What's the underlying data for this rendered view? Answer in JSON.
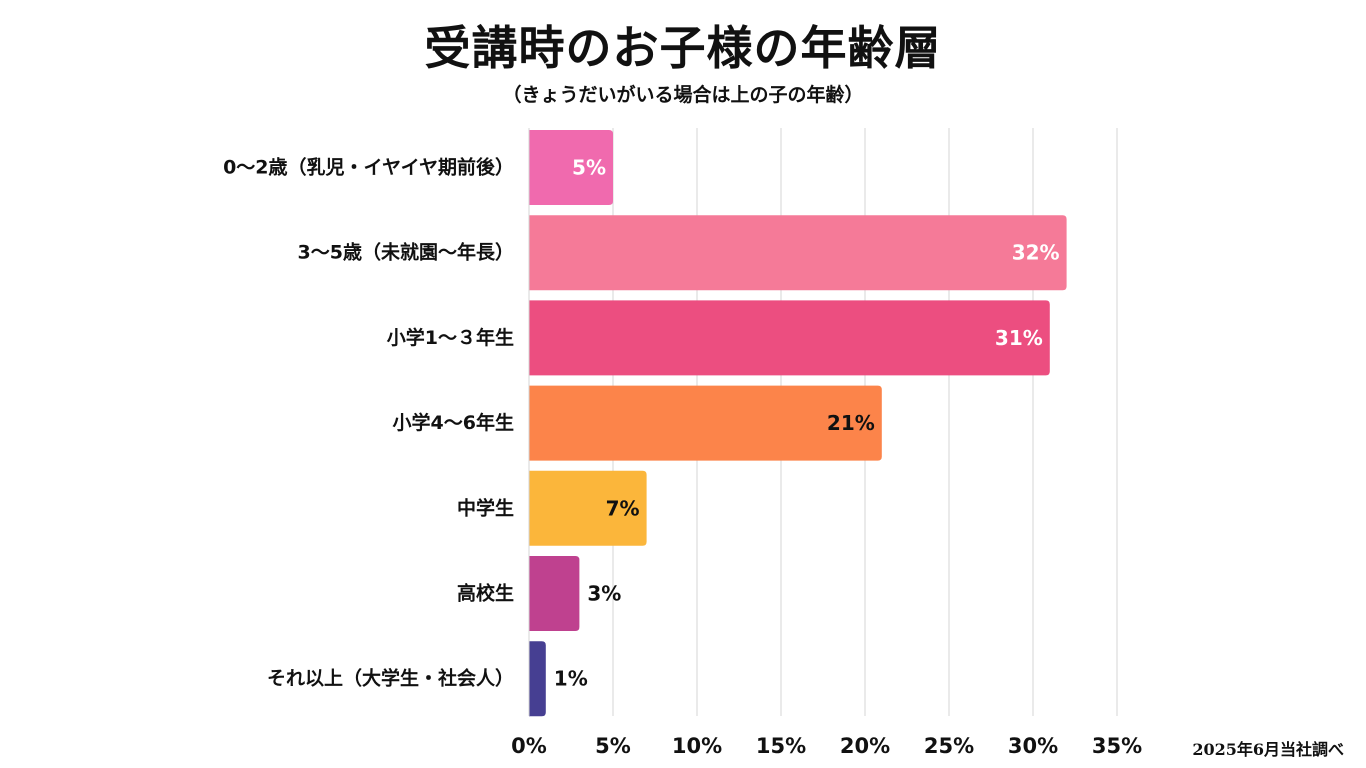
{
  "chart_data": {
    "type": "bar",
    "orientation": "horizontal",
    "title": "受講時のお子様の年齢層",
    "subtitle": "（きょうだいがいる場合は上の子の年齢）",
    "categories": [
      "0〜2歳（乳児・イヤイヤ期前後）",
      "3〜5歳（未就園〜年長）",
      "小学1〜３年生",
      "小学4〜6年生",
      "中学生",
      "高校生",
      "それ以上（大学生・社会人）"
    ],
    "values": [
      5,
      32,
      31,
      21,
      7,
      3,
      1
    ],
    "data_labels": [
      "5%",
      "32%",
      "31%",
      "21%",
      "7%",
      "3%",
      "1%"
    ],
    "bar_colors": [
      "#f06aae",
      "#f57a98",
      "#ec4e80",
      "#fc844a",
      "#fbb63b",
      "#bf418f",
      "#463f92"
    ],
    "label_colors": [
      "#ffffff",
      "#ffffff",
      "#ffffff",
      "#111111",
      "#111111",
      "#111111",
      "#111111"
    ],
    "label_inside": [
      true,
      true,
      true,
      true,
      true,
      false,
      false
    ],
    "xlim": [
      0,
      35
    ],
    "x_ticks": [
      0,
      5,
      10,
      15,
      20,
      25,
      30,
      35
    ],
    "x_tick_labels": [
      "0%",
      "5%",
      "10%",
      "15%",
      "20%",
      "25%",
      "30%",
      "35%"
    ],
    "grid": true,
    "grid_color": "#d4d4d4",
    "xlabel": "",
    "ylabel": ""
  },
  "source_note": "2025年6月当社調べ"
}
